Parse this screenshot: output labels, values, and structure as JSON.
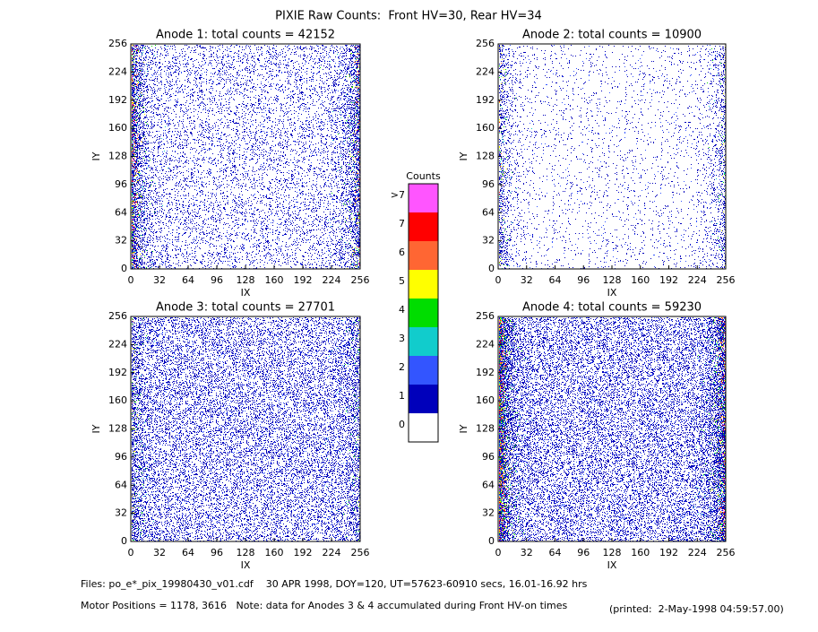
{
  "title": "PIXIE Raw Counts:  Front HV=30, Rear HV=34",
  "chart_data": [
    {
      "type": "heatmap",
      "title": "Anode 1: total counts = 42152",
      "xlabel": "IX",
      "ylabel": "IY",
      "xlim": [
        0,
        256
      ],
      "ylim": [
        0,
        256
      ],
      "xticks": [
        0,
        32,
        64,
        96,
        128,
        160,
        192,
        224,
        256
      ],
      "yticks": [
        0,
        32,
        64,
        96,
        128,
        160,
        192,
        224,
        256
      ]
    },
    {
      "type": "heatmap",
      "title": "Anode 2: total counts = 10900",
      "xlabel": "IX",
      "ylabel": "IY",
      "xlim": [
        0,
        256
      ],
      "ylim": [
        0,
        256
      ],
      "xticks": [
        0,
        32,
        64,
        96,
        128,
        160,
        192,
        224,
        256
      ],
      "yticks": [
        0,
        32,
        64,
        96,
        128,
        160,
        192,
        224,
        256
      ]
    },
    {
      "type": "heatmap",
      "title": "Anode 3: total counts = 27701",
      "xlabel": "IX",
      "ylabel": "IY",
      "xlim": [
        0,
        256
      ],
      "ylim": [
        0,
        256
      ],
      "xticks": [
        0,
        32,
        64,
        96,
        128,
        160,
        192,
        224,
        256
      ],
      "yticks": [
        0,
        32,
        64,
        96,
        128,
        160,
        192,
        224,
        256
      ]
    },
    {
      "type": "heatmap",
      "title": "Anode 4: total counts = 59230",
      "xlabel": "IX",
      "ylabel": "IY",
      "xlim": [
        0,
        256
      ],
      "ylim": [
        0,
        256
      ],
      "xticks": [
        0,
        32,
        64,
        96,
        128,
        160,
        192,
        224,
        256
      ],
      "yticks": [
        0,
        32,
        64,
        96,
        128,
        160,
        192,
        224,
        256
      ]
    }
  ],
  "colorbar": {
    "title": "Counts",
    "levels": [
      {
        "label": "0",
        "color": "#ffffff"
      },
      {
        "label": "1",
        "color": "#0000bb"
      },
      {
        "label": "2",
        "color": "#3355ff"
      },
      {
        "label": "3",
        "color": "#11cccc"
      },
      {
        "label": "4",
        "color": "#00dd00"
      },
      {
        "label": "5",
        "color": "#ffff00"
      },
      {
        "label": "6",
        "color": "#ff6633"
      },
      {
        "label": "7",
        "color": "#ff0000"
      },
      {
        "label": ">7",
        "color": "#ff55ff"
      }
    ]
  },
  "footer": {
    "files": "Files: po_e*_pix_19980430_v01.cdf    30 APR 1998, DOY=120, UT=57623-60910 secs, 16.01-16.92 hrs",
    "motor": "Motor Positions = 1178, 3616   Note: data for Anodes 3 & 4 accumulated during Front HV-on times",
    "printed": "(printed:  2-May-1998 04:59:57.00)"
  }
}
